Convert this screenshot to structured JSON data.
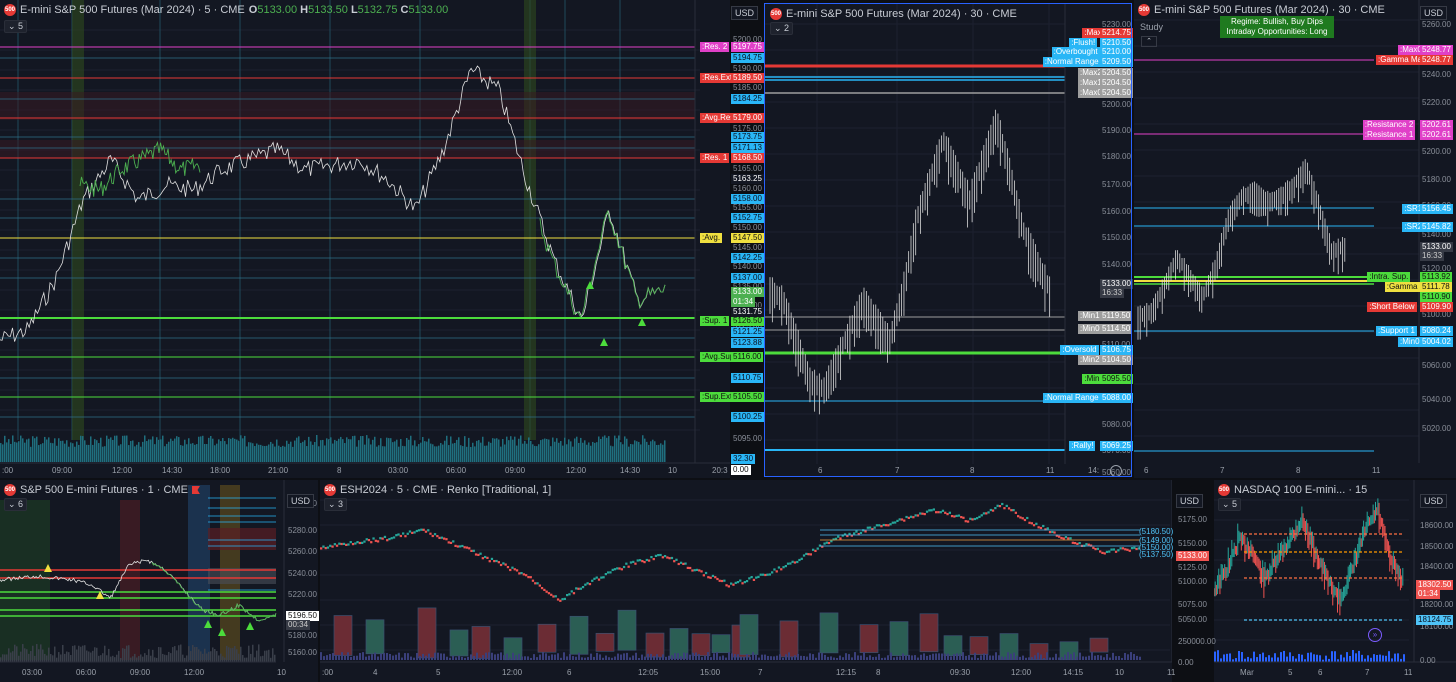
{
  "p1": {
    "title": "E-mini S&P 500 Futures (Mar 2024) · 5 · CME",
    "ohlc": {
      "o_label": "O",
      "o": "5133.00",
      "h_label": "H",
      "h": "5133.50",
      "l_label": "L",
      "l": "5132.75",
      "c_label": "C",
      "c": "5133.00"
    },
    "count": "5",
    "currency": "USD",
    "levels": [
      {
        "label": ":Res. 2",
        "value": "5197.75",
        "color": "#e040c8"
      },
      {
        "label": ":Res.Ext.",
        "value": "5189.50",
        "color": "#e53935"
      },
      {
        "label": ":Avg.Res.",
        "value": "5179.00",
        "color": "#e53935"
      },
      {
        "label": ":Res. 1",
        "value": "5168.50",
        "color": "#e53935"
      },
      {
        "label": ":Avg.",
        "value": "5147.50",
        "color": "#f0e040"
      },
      {
        "label": ":Sup. 1",
        "value": "5126.50",
        "color": "#4cdc3c"
      },
      {
        "label": ":Avg.Sup.",
        "value": "5116.00",
        "color": "#4cdc3c"
      },
      {
        "label": ":Sup.Ext.",
        "value": "5105.50",
        "color": "#4cdc3c"
      }
    ],
    "price_tags": [
      "5194.75",
      "5184.25",
      "5173.75",
      "5171.13",
      "5158.00",
      "5152.75",
      "5142.25",
      "5137.00",
      "5121.25",
      "5123.88",
      "5110.75",
      "5100.25"
    ],
    "last": {
      "price": "5133.00",
      "timer": "01:34"
    },
    "extra": [
      "5163.25",
      "5131.75"
    ],
    "axis": [
      "5200.00",
      "5190.00",
      "5185.00",
      "5175.00",
      "5165.00",
      "5160.00",
      "5155.00",
      "5150.00",
      "5145.00",
      "5140.00",
      "5135.00",
      "5130.00",
      "5125.00",
      "5095.00"
    ],
    "volume": {
      "value": "32.30",
      "sub": "0.00"
    },
    "xlabels": [
      ":00",
      "09:00",
      "12:00",
      "14:30",
      "18:00",
      "21:00",
      "8",
      "03:00",
      "06:00",
      "09:00",
      "12:00",
      "14:30",
      "10",
      "20:3"
    ]
  },
  "p2": {
    "title": "E-mini S&P 500 Futures (Mar 2024) · 30 · CME",
    "count": "2",
    "currency": "USD",
    "levels": [
      {
        "label": ":Max",
        "value": "5214.75",
        "color": "#e53935"
      },
      {
        "label": ":Flush!",
        "value": "5210.50",
        "color": "#29b6f6"
      },
      {
        "label": ":Overbought",
        "value": "5210.00",
        "color": "#29b6f6"
      },
      {
        "label": ":Normal Range",
        "value": "5209.50",
        "color": "#29b6f6"
      },
      {
        "label": ":Max2",
        "value": "5204.50",
        "color": "#9e9e9e"
      },
      {
        "label": ":Max1",
        "value": "5204.50",
        "color": "#9e9e9e"
      },
      {
        "label": ":Max0",
        "value": "5204.50",
        "color": "#9e9e9e"
      },
      {
        "label": ":Min1",
        "value": "5119.50",
        "color": "#9e9e9e"
      },
      {
        "label": ":Min0",
        "value": "5114.50",
        "color": "#9e9e9e"
      },
      {
        "label": ":Oversold",
        "value": "5106.75",
        "color": "#29b6f6"
      },
      {
        "label": ":Min2",
        "value": "5104.50",
        "color": "#9e9e9e"
      },
      {
        "label": ":Min",
        "value": "5095.50",
        "color": "#4cdc3c"
      },
      {
        "label": ":Normal Range",
        "value": "5088.00",
        "color": "#29b6f6"
      },
      {
        "label": ":Rally!",
        "value": "5069.25",
        "color": "#29b6f6"
      }
    ],
    "axis": [
      "5230.00",
      "5220.00",
      "5200.00",
      "5190.00",
      "5180.00",
      "5170.00",
      "5160.00",
      "5150.00",
      "5140.00",
      "5110.00",
      "5080.00",
      "5070.00",
      "5060.00"
    ],
    "last": {
      "price": "5133.00",
      "timer": "16:33"
    },
    "xlabels": [
      "6",
      "7",
      "8",
      "11",
      "14:"
    ]
  },
  "p3": {
    "title": "E-mini S&P 500 Futures (Mar 2024) · 30 · CME",
    "study": "Study",
    "regime": "Regime: Bullish, Buy Dips",
    "intraday": "Intraday Opportunities: Long",
    "currency": "USD",
    "levels": [
      {
        "label": ":Max0",
        "value": "5248.77",
        "color": "#e040c8"
      },
      {
        "label": ":Gamma Max",
        "value": "5248.77",
        "color": "#e53935"
      },
      {
        "label": ":Resistance 2",
        "value": "5202.61",
        "color": "#e040c8"
      },
      {
        "label": ":Resistance 1",
        "value": "5202.61",
        "color": "#e040c8"
      },
      {
        "label": ":SR1",
        "value": "5156.45",
        "color": "#29b6f6"
      },
      {
        "label": ":SR2",
        "value": "5145.82",
        "color": "#29b6f6"
      },
      {
        "label": ":Intra. Sup.",
        "value": "5113.92",
        "color": "#4cdc3c"
      },
      {
        "label": ":Gamma 0",
        "value": "5111.78",
        "color": "#f0e040"
      },
      {
        "label": "",
        "value": "5110.90",
        "color": "#4cdc3c"
      },
      {
        "label": ":Short Below",
        "value": "5109.90",
        "color": "#e53935"
      },
      {
        "label": ":Support 1",
        "value": "5080.24",
        "color": "#29b6f6"
      },
      {
        "label": ":Min0",
        "value": "5004.02",
        "color": "#29b6f6"
      }
    ],
    "axis": [
      "5260.00",
      "5240.00",
      "5220.00",
      "5200.00",
      "5180.00",
      "5160.00",
      "5140.00",
      "5120.00",
      "5100.00",
      "5080.00",
      "5060.00",
      "5040.00",
      "5020.00"
    ],
    "last": {
      "price": "5133.00",
      "timer": "16:33"
    },
    "xlabels": [
      "6",
      "7",
      "8",
      "11"
    ]
  },
  "p4": {
    "title": "S&P 500 E-mini Futures · 1 · CME",
    "count": "6",
    "currency": "USD",
    "axis": [
      "5300.00",
      "5280.00",
      "5260.00",
      "5240.00",
      "5220.00",
      "5180.00",
      "5160.00"
    ],
    "last": {
      "price": "5196.50",
      "timer": "00:34"
    },
    "xlabels": [
      "03:00",
      "06:00",
      "09:00",
      "12:00",
      "10"
    ]
  },
  "p5": {
    "title": "ESH2024 · 5 · CME · Renko [Traditional, 1]",
    "count": "3",
    "currency": "USD",
    "axis": [
      "5175.00",
      "5150.00",
      "5125.00",
      "5100.00",
      "5075.00",
      "5050.00",
      "250000.00",
      "0.00"
    ],
    "box_levels": [
      "5180.50",
      "5149.00",
      "5150.00",
      "5137.50"
    ],
    "last": {
      "price": "5133.00"
    },
    "xlabels": [
      ":00",
      "4",
      "5",
      "12:00",
      "6",
      "12:05",
      "15:00",
      "7",
      "12:15",
      "8",
      "09:30",
      "12:00",
      "14:15",
      "10",
      "11"
    ]
  },
  "p6": {
    "title": "NASDAQ 100 E-mini... · 15",
    "count": "5",
    "currency": "USD",
    "axis": [
      "18600.00",
      "18500.00",
      "18400.00",
      "18200.00",
      "18100.00",
      "0.00"
    ],
    "last": {
      "price": "18302.50",
      "timer": "01:34"
    },
    "tag2": "18124.75",
    "xlabels": [
      "Mar",
      "5",
      "6",
      "7",
      "11"
    ]
  }
}
